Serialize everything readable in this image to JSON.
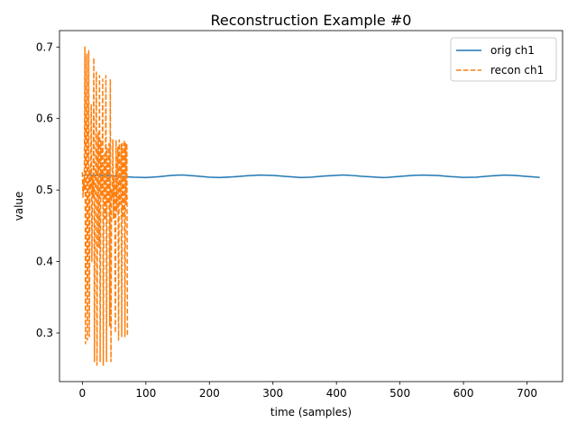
{
  "chart_data": {
    "type": "line",
    "title": "Reconstruction Example #0",
    "xlabel": "time (samples)",
    "ylabel": "value",
    "xlim": [
      -36,
      756
    ],
    "ylim": [
      0.232,
      0.723
    ],
    "xticks": [
      0,
      100,
      200,
      300,
      400,
      500,
      600,
      700
    ],
    "xtick_labels": [
      "0",
      "100",
      "200",
      "300",
      "400",
      "500",
      "600",
      "700"
    ],
    "yticks": [
      0.3,
      0.4,
      0.5,
      0.6,
      0.7
    ],
    "ytick_labels": [
      "0.3",
      "0.4",
      "0.5",
      "0.6",
      "0.7"
    ],
    "grid": false,
    "legend_position": "top-right",
    "colors": {
      "orig": "#1f77b4",
      "recon": "#ff7f0e"
    },
    "series": [
      {
        "name": "orig ch1",
        "style": "solid",
        "x": [
          0,
          20,
          40,
          60,
          80,
          100,
          120,
          140,
          152,
          160,
          180,
          200,
          216,
          240,
          260,
          280,
          300,
          320,
          344,
          360,
          380,
          408,
          420,
          440,
          472,
          480,
          500,
          520,
          536,
          560,
          580,
          600,
          620,
          640,
          664,
          680,
          700,
          720
        ],
        "values": [
          0.521,
          0.5208,
          0.5203,
          0.519,
          0.518,
          0.5175,
          0.5185,
          0.5205,
          0.521,
          0.5209,
          0.5195,
          0.518,
          0.5175,
          0.5185,
          0.52,
          0.521,
          0.5205,
          0.519,
          0.5175,
          0.518,
          0.5195,
          0.521,
          0.5207,
          0.5192,
          0.5175,
          0.5177,
          0.519,
          0.5205,
          0.521,
          0.5203,
          0.5188,
          0.5177,
          0.518,
          0.5195,
          0.521,
          0.5205,
          0.519,
          0.5177
        ]
      },
      {
        "name": "recon ch1",
        "style": "dashed",
        "x": [
          0,
          1,
          2,
          3,
          4,
          5,
          6,
          7,
          8,
          9,
          10,
          11,
          12,
          13,
          14,
          15,
          16,
          17,
          18,
          19,
          20,
          21,
          22,
          23,
          24,
          25,
          26,
          27,
          28,
          29,
          30,
          31,
          32,
          33,
          34,
          35,
          36,
          37,
          38,
          39,
          40,
          41,
          42,
          43,
          44,
          45,
          46,
          47,
          48,
          49,
          50,
          51,
          52,
          53,
          54,
          55,
          56,
          57,
          58,
          59,
          60,
          61,
          62,
          63,
          64,
          65,
          66,
          67,
          68,
          69,
          70,
          71
        ],
        "values": [
          0.525,
          0.49,
          0.515,
          0.5,
          0.7,
          0.285,
          0.52,
          0.69,
          0.29,
          0.505,
          0.695,
          0.295,
          0.53,
          0.5,
          0.62,
          0.4,
          0.52,
          0.49,
          0.685,
          0.26,
          0.5,
          0.54,
          0.665,
          0.255,
          0.53,
          0.58,
          0.42,
          0.66,
          0.26,
          0.57,
          0.5,
          0.49,
          0.655,
          0.255,
          0.53,
          0.55,
          0.46,
          0.66,
          0.26,
          0.56,
          0.48,
          0.5,
          0.565,
          0.31,
          0.655,
          0.26,
          0.5,
          0.49,
          0.57,
          0.46,
          0.52,
          0.49,
          0.3,
          0.57,
          0.47,
          0.53,
          0.56,
          0.29,
          0.57,
          0.48,
          0.5,
          0.565,
          0.295,
          0.565,
          0.46,
          0.53,
          0.57,
          0.295,
          0.565,
          0.48,
          0.565,
          0.295
        ]
      }
    ]
  }
}
